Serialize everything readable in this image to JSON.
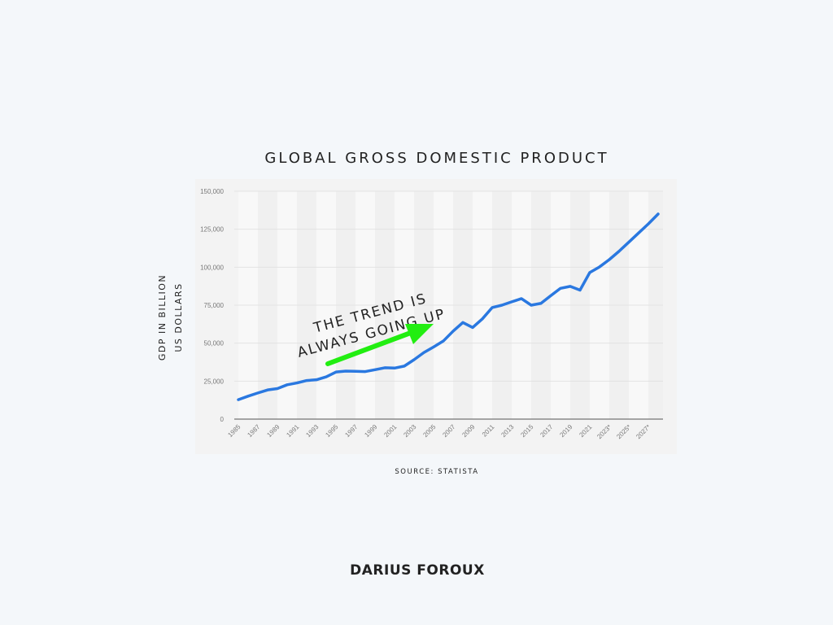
{
  "chart_data": {
    "type": "line",
    "title": "GLOBAL GROSS DOMESTIC PRODUCT",
    "ylabel_lines": [
      "GDP IN BILLION",
      "US DOLLARS"
    ],
    "xlabel": "",
    "source": "SOURCE: STATISTA",
    "annotation_lines": [
      "THE TREND IS",
      "ALWAYS GOING UP"
    ],
    "ylim": [
      0,
      150000
    ],
    "yticks": [
      0,
      25000,
      50000,
      75000,
      100000,
      125000,
      150000
    ],
    "ytick_labels": [
      "0",
      "25,000",
      "50,000",
      "75,000",
      "100,000",
      "125,000",
      "150,000"
    ],
    "xtick_labels": [
      "1985",
      "1987",
      "1989",
      "1991",
      "1993",
      "1995",
      "1997",
      "1999",
      "2001",
      "2003",
      "2005",
      "2007",
      "2009",
      "2011",
      "2013",
      "2015",
      "2017",
      "2019",
      "2021",
      "2023*",
      "2025*",
      "2027*"
    ],
    "grid": true,
    "x": [
      1985,
      1986,
      1987,
      1988,
      1989,
      1990,
      1991,
      1992,
      1993,
      1994,
      1995,
      1996,
      1997,
      1998,
      1999,
      2000,
      2001,
      2002,
      2003,
      2004,
      2005,
      2006,
      2007,
      2008,
      2009,
      2010,
      2011,
      2012,
      2013,
      2014,
      2015,
      2016,
      2017,
      2018,
      2019,
      2020,
      2021,
      2022,
      2023,
      2024,
      2025,
      2026,
      2027,
      2028
    ],
    "series": [
      {
        "values": [
          12800,
          15100,
          17200,
          19200,
          20100,
          22600,
          23800,
          25400,
          25900,
          27800,
          31000,
          31600,
          31500,
          31300,
          32500,
          33800,
          33600,
          34900,
          39100,
          43800,
          47500,
          51400,
          57900,
          63600,
          60300,
          66000,
          73400,
          75000,
          77200,
          79300,
          75000,
          76200,
          81200,
          86100,
          87400,
          84900,
          96500,
          100200,
          105000,
          110500,
          116500,
          122500,
          128500,
          135000
        ],
        "color": "#2a78e0"
      }
    ],
    "annotation_arrow_color": "#22ee11"
  },
  "footer": {
    "logo_text": "DARIUS FOROUX"
  }
}
